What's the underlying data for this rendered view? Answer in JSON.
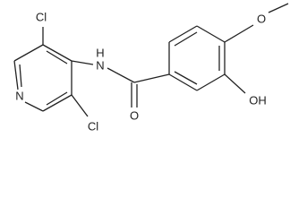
{
  "atoms": {
    "cl_top": "Cl",
    "cl_bottom": "Cl",
    "pyridine_n": "N",
    "amide_nh": "N",
    "amide_h": "H",
    "carbonyl_o": "O",
    "methoxy_o": "O",
    "hydroxyl": "OH"
  }
}
